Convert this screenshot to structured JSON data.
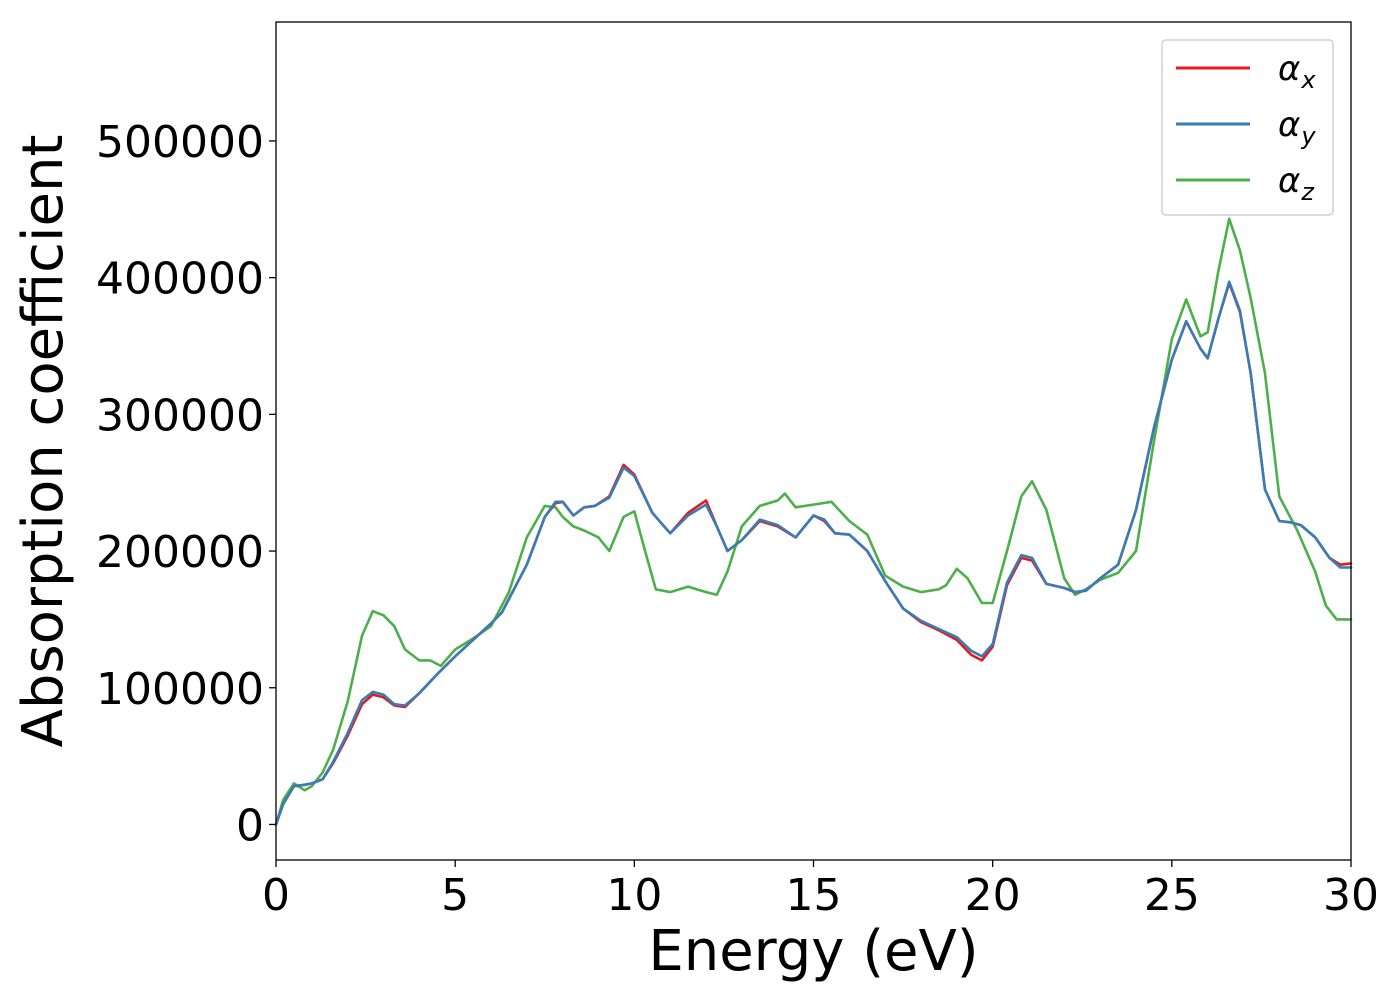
{
  "chart_data": {
    "type": "line",
    "title": "",
    "xlabel": "Energy (eV)",
    "ylabel": "Absorption coefficient",
    "xlim": [
      0,
      30
    ],
    "ylim": [
      -26000,
      587000
    ],
    "xticks": [
      0,
      5,
      10,
      15,
      20,
      25,
      30
    ],
    "yticks": [
      0,
      100000,
      200000,
      300000,
      400000,
      500000
    ],
    "grid": false,
    "legend_position": "top-right",
    "legend": [
      {
        "symbol": "α",
        "sub": "x"
      },
      {
        "symbol": "α",
        "sub": "y"
      },
      {
        "symbol": "α",
        "sub": "z"
      }
    ],
    "series": [
      {
        "color": "#e41a1c",
        "x": [
          0,
          0.2,
          0.5,
          0.8,
          1.0,
          1.3,
          1.6,
          2.0,
          2.4,
          2.7,
          3.0,
          3.3,
          3.6,
          4.0,
          4.5,
          5.0,
          5.5,
          6.0,
          6.3,
          6.6,
          7.0,
          7.5,
          7.8,
          8.0,
          8.3,
          8.6,
          8.9,
          9.3,
          9.7,
          10.0,
          10.5,
          11.0,
          11.5,
          12.0,
          12.3,
          12.6,
          13.0,
          13.5,
          14.0,
          14.5,
          15.0,
          15.3,
          15.6,
          16.0,
          16.5,
          17.0,
          17.5,
          18.0,
          18.5,
          19.0,
          19.4,
          19.7,
          20.0,
          20.4,
          20.8,
          21.1,
          21.5,
          22.0,
          22.3,
          22.6,
          23.0,
          23.5,
          24.0,
          24.5,
          25.0,
          25.4,
          25.8,
          26.0,
          26.3,
          26.6,
          26.9,
          27.2,
          27.6,
          28.0,
          28.3,
          28.6,
          29.0,
          29.4,
          29.7,
          30.0
        ],
        "y": [
          0,
          15000,
          28000,
          29000,
          30000,
          33000,
          45000,
          65000,
          88000,
          95000,
          93000,
          87000,
          86000,
          96000,
          110000,
          123000,
          135000,
          147000,
          155000,
          170000,
          190000,
          225000,
          235000,
          236000,
          226000,
          232000,
          233000,
          240000,
          263000,
          256000,
          228000,
          213000,
          228000,
          237000,
          218000,
          200000,
          208000,
          222000,
          218000,
          210000,
          226000,
          222000,
          213000,
          212000,
          200000,
          178000,
          158000,
          148000,
          142000,
          135000,
          124000,
          120000,
          130000,
          175000,
          195000,
          193000,
          176000,
          173000,
          170000,
          171000,
          180000,
          190000,
          230000,
          290000,
          340000,
          368000,
          348000,
          341000,
          370000,
          396000,
          375000,
          330000,
          245000,
          222000,
          221000,
          219000,
          210000,
          195000,
          190000,
          191000
        ]
      },
      {
        "color": "#377eb8",
        "x": [
          0,
          0.2,
          0.5,
          0.8,
          1.0,
          1.3,
          1.6,
          2.0,
          2.4,
          2.7,
          3.0,
          3.3,
          3.6,
          4.0,
          4.5,
          5.0,
          5.5,
          6.0,
          6.3,
          6.6,
          7.0,
          7.5,
          7.8,
          8.0,
          8.3,
          8.6,
          8.9,
          9.3,
          9.7,
          10.0,
          10.5,
          11.0,
          11.5,
          12.0,
          12.3,
          12.6,
          13.0,
          13.5,
          14.0,
          14.5,
          15.0,
          15.3,
          15.6,
          16.0,
          16.5,
          17.0,
          17.5,
          18.0,
          18.5,
          19.0,
          19.4,
          19.7,
          20.0,
          20.4,
          20.8,
          21.1,
          21.5,
          22.0,
          22.3,
          22.6,
          23.0,
          23.5,
          24.0,
          24.5,
          25.0,
          25.4,
          25.8,
          26.0,
          26.3,
          26.6,
          26.9,
          27.2,
          27.6,
          28.0,
          28.3,
          28.6,
          29.0,
          29.4,
          29.7,
          30.0
        ],
        "y": [
          0,
          15000,
          28000,
          29000,
          30000,
          33000,
          46000,
          67000,
          91000,
          97000,
          95000,
          88000,
          87000,
          96000,
          110000,
          123000,
          135000,
          147000,
          155000,
          170000,
          190000,
          225000,
          236000,
          236000,
          226000,
          232000,
          233000,
          239000,
          261000,
          255000,
          228000,
          213000,
          226000,
          234000,
          218000,
          200000,
          208000,
          223000,
          219000,
          210000,
          226000,
          223000,
          213000,
          212000,
          200000,
          178000,
          158000,
          149000,
          143000,
          137000,
          127000,
          123000,
          132000,
          177000,
          197000,
          195000,
          176000,
          173000,
          170000,
          171000,
          180000,
          190000,
          230000,
          290000,
          340000,
          368000,
          348000,
          341000,
          370000,
          397000,
          376000,
          330000,
          245000,
          222000,
          221000,
          219000,
          210000,
          195000,
          188000,
          188000
        ]
      },
      {
        "color": "#4daf4a",
        "x": [
          0,
          0.2,
          0.5,
          0.8,
          1.0,
          1.3,
          1.6,
          2.0,
          2.4,
          2.7,
          3.0,
          3.3,
          3.6,
          4.0,
          4.3,
          4.6,
          5.0,
          5.5,
          6.0,
          6.5,
          7.0,
          7.5,
          7.8,
          8.0,
          8.3,
          8.6,
          9.0,
          9.3,
          9.7,
          10.0,
          10.3,
          10.6,
          11.0,
          11.5,
          12.0,
          12.3,
          12.6,
          13.0,
          13.5,
          14.0,
          14.2,
          14.5,
          15.0,
          15.5,
          16.0,
          16.5,
          17.0,
          17.5,
          18.0,
          18.5,
          18.7,
          19.0,
          19.3,
          19.7,
          20.0,
          20.4,
          20.8,
          21.1,
          21.5,
          22.0,
          22.3,
          22.6,
          23.0,
          23.5,
          24.0,
          24.5,
          25.0,
          25.4,
          25.8,
          26.0,
          26.3,
          26.6,
          26.9,
          27.2,
          27.6,
          28.0,
          28.5,
          29.0,
          29.3,
          29.6,
          30.0
        ],
        "y": [
          0,
          18000,
          30000,
          25000,
          28000,
          38000,
          55000,
          90000,
          138000,
          156000,
          153000,
          145000,
          128000,
          120000,
          120000,
          116000,
          128000,
          136000,
          145000,
          170000,
          210000,
          233000,
          232000,
          225000,
          218000,
          215000,
          210000,
          200000,
          225000,
          229000,
          200000,
          172000,
          170000,
          174000,
          170000,
          168000,
          185000,
          218000,
          233000,
          237000,
          242000,
          232000,
          234000,
          236000,
          222000,
          212000,
          182000,
          174000,
          170000,
          172000,
          175000,
          187000,
          180000,
          162000,
          162000,
          200000,
          240000,
          251000,
          230000,
          180000,
          168000,
          172000,
          179000,
          184000,
          200000,
          280000,
          355000,
          384000,
          357000,
          360000,
          405000,
          443000,
          420000,
          385000,
          330000,
          240000,
          215000,
          185000,
          160000,
          150000,
          150000
        ]
      }
    ]
  }
}
